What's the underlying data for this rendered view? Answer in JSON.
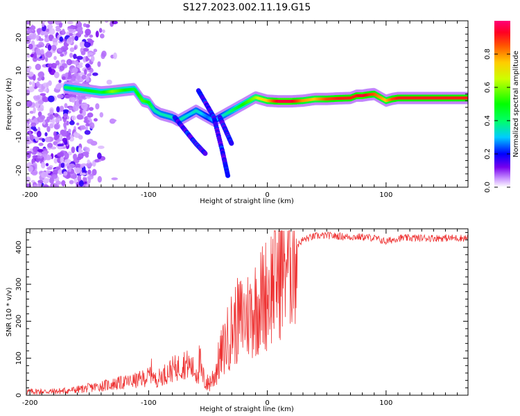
{
  "title": "S127.2023.002.11.19.G15",
  "chart_data": [
    {
      "type": "heatmap",
      "panel": "spectrogram",
      "xlabel": "Height of straight line (km)",
      "ylabel": "Frequency (Hz)",
      "xlim": [
        -203,
        169
      ],
      "ylim": [
        -25,
        25
      ],
      "xticks": [
        -200,
        -100,
        0,
        100
      ],
      "yticks": [
        -20,
        -10,
        0,
        10,
        20
      ],
      "grid": false,
      "colorbar": {
        "label": "Normalized spectral amplitude",
        "range": [
          0.0,
          1.0
        ],
        "ticks": [
          0.0,
          0.2,
          0.4,
          0.6,
          0.8
        ],
        "colormap": "rainbow (white-violet-blue-cyan-green-yellow-orange-red-magenta)"
      },
      "ridge": {
        "description": "dominant frequency track of the normalized spectrum",
        "x": [
          -170,
          -160,
          -150,
          -140,
          -130,
          -120,
          -112,
          -105,
          -100,
          -95,
          -90,
          -85,
          -80,
          -75,
          -70,
          -65,
          -60,
          -55,
          -50,
          -45,
          -40,
          -35,
          -30,
          -25,
          -20,
          -15,
          -10,
          -5,
          0,
          10,
          20,
          30,
          40,
          50,
          60,
          70,
          75,
          80,
          85,
          90,
          95,
          100,
          105,
          110,
          120,
          130,
          140,
          150,
          160,
          169
        ],
        "y": [
          5,
          4.5,
          4,
          3.5,
          3.8,
          4.2,
          4.5,
          1,
          0.5,
          -2,
          -3,
          -3.5,
          -4,
          -5,
          -4,
          -3,
          -2,
          -3,
          -4,
          -5,
          -4,
          -3,
          -2,
          -1,
          0,
          1,
          2,
          1.5,
          1,
          0.8,
          0.8,
          1,
          1.5,
          1.5,
          1.7,
          1.8,
          2.5,
          2.5,
          2.8,
          3,
          2,
          1,
          1.5,
          1.8,
          1.8,
          1.8,
          1.8,
          1.8,
          1.8,
          1.8
        ],
        "amplitude": [
          0.4,
          0.45,
          0.5,
          0.45,
          0.6,
          0.5,
          0.45,
          0.55,
          0.5,
          0.35,
          0.35,
          0.35,
          0.35,
          0.35,
          0.35,
          0.3,
          0.35,
          0.3,
          0.25,
          0.3,
          0.3,
          0.35,
          0.4,
          0.45,
          0.5,
          0.55,
          0.6,
          0.7,
          0.75,
          0.95,
          0.95,
          0.8,
          0.75,
          0.85,
          0.9,
          0.9,
          0.9,
          0.95,
          0.9,
          0.85,
          0.8,
          0.75,
          0.85,
          0.9,
          0.9,
          0.9,
          0.9,
          0.9,
          0.9,
          0.9
        ]
      }
    },
    {
      "type": "line",
      "panel": "snr",
      "xlabel": "Height of straight line (km)",
      "ylabel": "SNR (10 * v/v)",
      "xlim": [
        -203,
        169
      ],
      "ylim": [
        0,
        450
      ],
      "xticks": [
        -200,
        -100,
        0,
        100
      ],
      "yticks": [
        0,
        100,
        200,
        300,
        400
      ],
      "grid": false,
      "series": [
        {
          "color": "#ee3333",
          "x": [
            -203,
            -190,
            -180,
            -170,
            -160,
            -150,
            -140,
            -130,
            -120,
            -110,
            -105,
            -100,
            -97,
            -95,
            -90,
            -85,
            -80,
            -75,
            -70,
            -65,
            -60,
            -57,
            -55,
            -50,
            -45,
            -40,
            -35,
            -30,
            -25,
            -20,
            -15,
            -10,
            -5,
            0,
            5,
            10,
            15,
            20,
            25,
            30,
            40,
            50,
            60,
            70,
            80,
            90,
            95,
            100,
            105,
            110,
            120,
            130,
            140,
            150,
            160,
            169
          ],
          "y": [
            10,
            10,
            10,
            12,
            15,
            20,
            25,
            30,
            35,
            40,
            45,
            50,
            70,
            40,
            50,
            60,
            70,
            75,
            85,
            80,
            60,
            90,
            50,
            30,
            50,
            100,
            140,
            180,
            200,
            210,
            220,
            240,
            260,
            280,
            310,
            340,
            370,
            390,
            405,
            420,
            430,
            432,
            430,
            428,
            428,
            425,
            420,
            415,
            420,
            425,
            425,
            425,
            425,
            425,
            425,
            425
          ]
        }
      ]
    }
  ]
}
